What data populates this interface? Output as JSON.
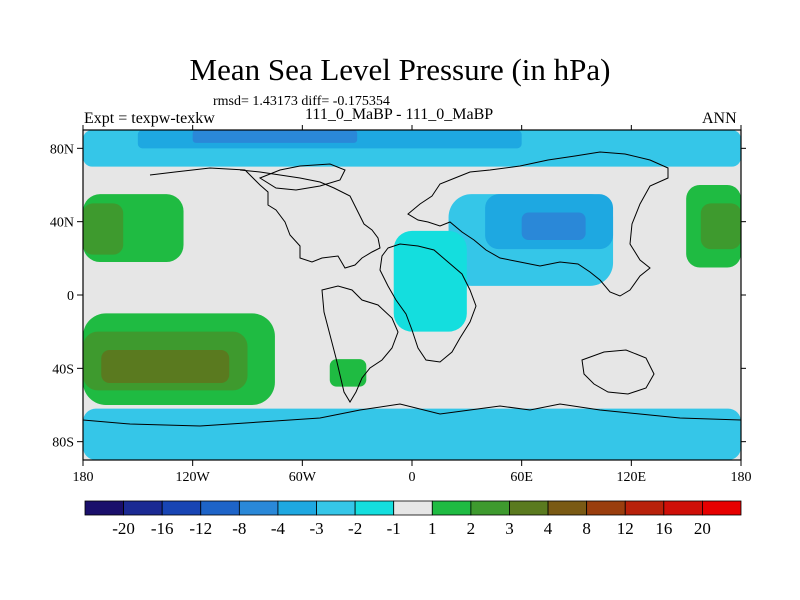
{
  "chart_data": {
    "type": "heatmap",
    "title": "Mean Sea Level Pressure (in hPa)",
    "stats_text": "rmsd= 1.43173 diff= -0.175354",
    "left_label": "Expt = texpw-texkw",
    "center_label": "111_0_MaBP - 111_0_MaBP",
    "right_label": "ANN",
    "x_range": [
      -180,
      180
    ],
    "y_range": [
      -90,
      90
    ],
    "x_ticks": [
      {
        "value": -180,
        "label": "180"
      },
      {
        "value": -120,
        "label": "120W"
      },
      {
        "value": -60,
        "label": "60W"
      },
      {
        "value": 0,
        "label": "0"
      },
      {
        "value": 60,
        "label": "60E"
      },
      {
        "value": 120,
        "label": "120E"
      },
      {
        "value": 180,
        "label": "180"
      }
    ],
    "y_ticks": [
      {
        "value": 80,
        "label": "80N"
      },
      {
        "value": 40,
        "label": "40N"
      },
      {
        "value": 0,
        "label": "0"
      },
      {
        "value": -40,
        "label": "40S"
      },
      {
        "value": -80,
        "label": "80S"
      }
    ],
    "colorbar": {
      "levels": [
        "-20",
        "-16",
        "-12",
        "-8",
        "-4",
        "-3",
        "-2",
        "-1",
        "1",
        "2",
        "3",
        "4",
        "8",
        "12",
        "16",
        "20"
      ],
      "colors": [
        "#1a0f6b",
        "#1b2a93",
        "#1845b4",
        "#1e64c8",
        "#2a88d8",
        "#1ea8e1",
        "#35c6e8",
        "#14dede",
        "#e6e6e6",
        "#1fbb42",
        "#3e9a2e",
        "#5a7a1f",
        "#7a5a14",
        "#9a3e0e",
        "#b8210a",
        "#cf0f08",
        "#e60000"
      ]
    },
    "regions": [
      {
        "level": "-2",
        "color": "#35c6e8",
        "lon_min": -180,
        "lon_max": 180,
        "lat_min": 70,
        "lat_max": 90
      },
      {
        "level": "-3",
        "color": "#1ea8e1",
        "lon_min": -150,
        "lon_max": 60,
        "lat_min": 80,
        "lat_max": 90
      },
      {
        "level": "-4",
        "color": "#2a88d8",
        "lon_min": -120,
        "lon_max": -30,
        "lat_min": 83,
        "lat_max": 90
      },
      {
        "level": "-2",
        "color": "#35c6e8",
        "lon_min": -180,
        "lon_max": 180,
        "lat_min": -90,
        "lat_max": -62
      },
      {
        "level": "-2",
        "color": "#35c6e8",
        "lon_min": 20,
        "lon_max": 110,
        "lat_min": 5,
        "lat_max": 55
      },
      {
        "level": "-3",
        "color": "#1ea8e1",
        "lon_min": 40,
        "lon_max": 110,
        "lat_min": 25,
        "lat_max": 55
      },
      {
        "level": "-4",
        "color": "#2a88d8",
        "lon_min": 60,
        "lon_max": 95,
        "lat_min": 30,
        "lat_max": 45
      },
      {
        "level": "-1",
        "color": "#14dede",
        "lon_min": -10,
        "lon_max": 30,
        "lat_min": -20,
        "lat_max": 35
      },
      {
        "level": "2",
        "color": "#1fbb42",
        "lon_min": -180,
        "lon_max": -125,
        "lat_min": 18,
        "lat_max": 55
      },
      {
        "level": "3",
        "color": "#3e9a2e",
        "lon_min": -180,
        "lon_max": -158,
        "lat_min": 22,
        "lat_max": 50
      },
      {
        "level": "2",
        "color": "#1fbb42",
        "lon_min": -180,
        "lon_max": -75,
        "lat_min": -60,
        "lat_max": -10
      },
      {
        "level": "3",
        "color": "#3e9a2e",
        "lon_min": -180,
        "lon_max": -90,
        "lat_min": -52,
        "lat_max": -20
      },
      {
        "level": "4",
        "color": "#5a7a1f",
        "lon_min": -170,
        "lon_max": -100,
        "lat_min": -48,
        "lat_max": -30
      },
      {
        "level": "2",
        "color": "#1fbb42",
        "lon_min": 150,
        "lon_max": 180,
        "lat_min": 15,
        "lat_max": 60
      },
      {
        "level": "3",
        "color": "#3e9a2e",
        "lon_min": 158,
        "lon_max": 180,
        "lat_min": 25,
        "lat_max": 50
      },
      {
        "level": "2",
        "color": "#1fbb42",
        "lon_min": -45,
        "lon_max": -25,
        "lat_min": -50,
        "lat_max": -35
      }
    ]
  }
}
